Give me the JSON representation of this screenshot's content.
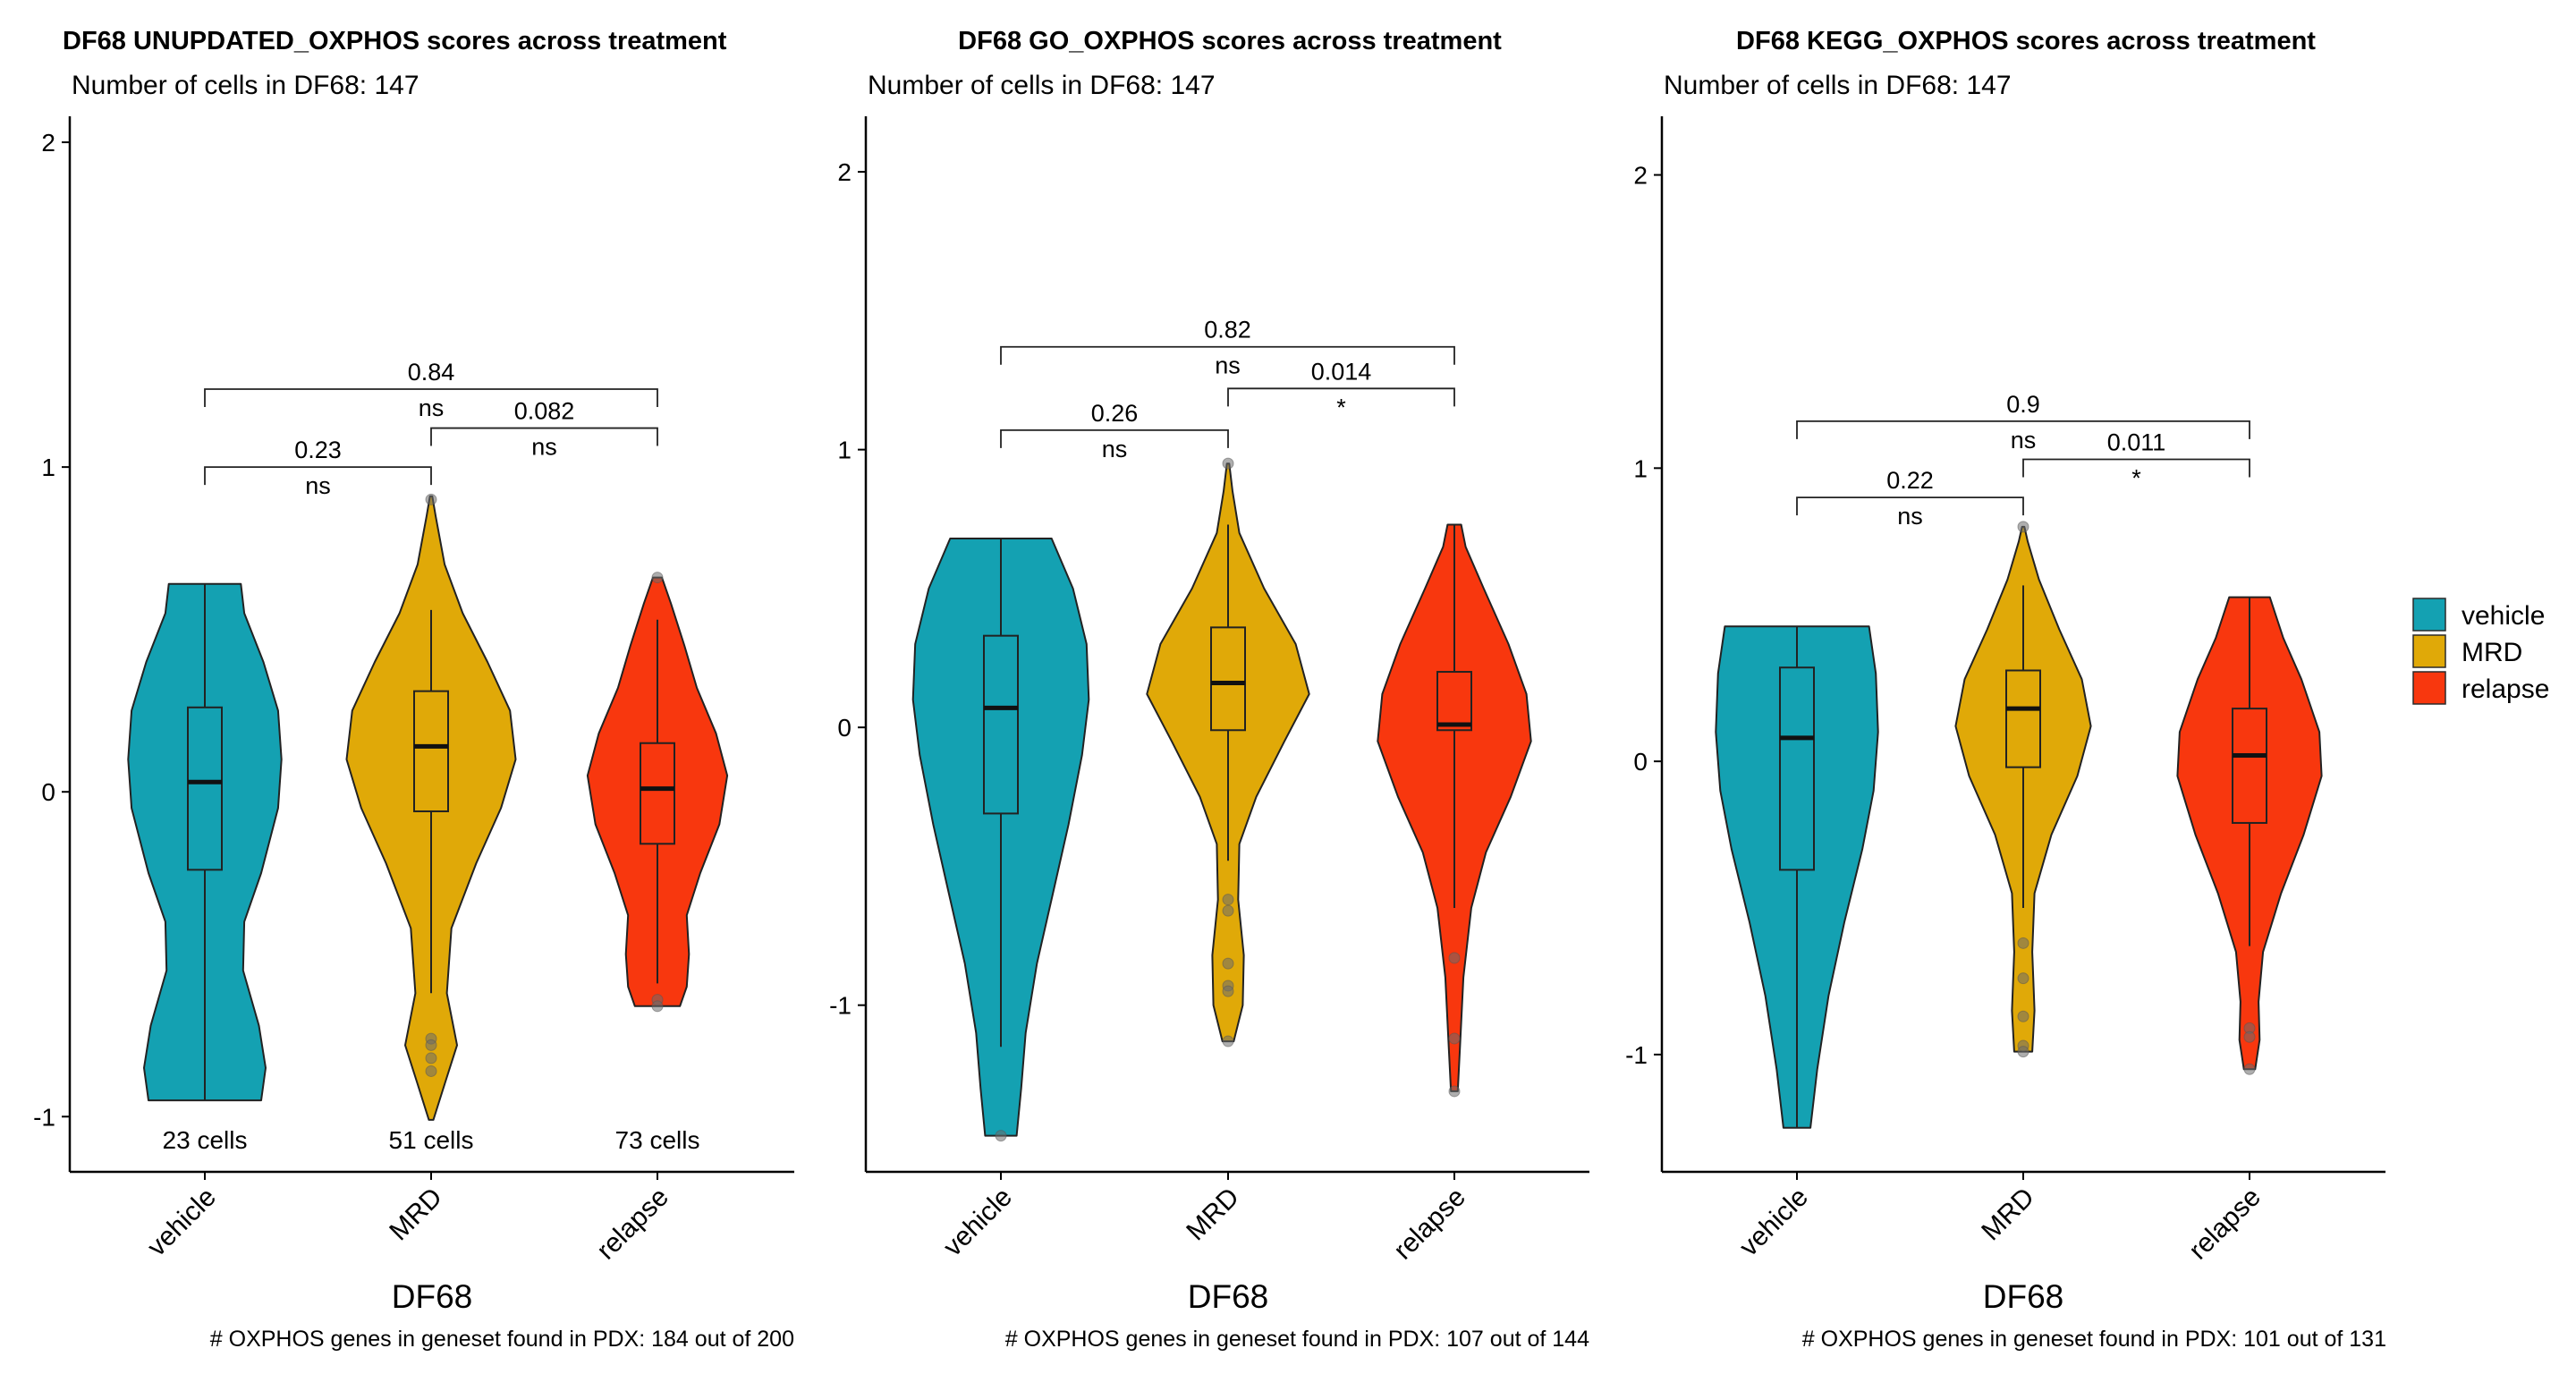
{
  "chart_data": [
    {
      "type": "violin",
      "title": "DF68 UNUPDATED_OXPHOS scores across treatment",
      "subtitle": "Number of cells in DF68: 147",
      "xlabel": "DF68",
      "caption": "# OXPHOS genes in geneset found in PDX: 184 out of 200",
      "categories": [
        "vehicle",
        "MRD",
        "relapse"
      ],
      "ylim": [
        -1.17,
        2.08
      ],
      "yticks": [
        -1,
        0,
        1,
        2
      ],
      "yticklabels": [
        "-1",
        "0",
        "1",
        "2"
      ],
      "cell_counts": [
        "23 cells",
        "51 cells",
        "73 cells"
      ],
      "series": [
        {
          "name": "vehicle",
          "color": "#14A1B2",
          "ymin": -0.95,
          "q1": -0.24,
          "median": 0.03,
          "q3": 0.26,
          "ymax": 0.64,
          "whisker_low": -0.95,
          "whisker_high": 0.64,
          "density": [
            [
              -0.95,
              0.5
            ],
            [
              -0.85,
              0.54
            ],
            [
              -0.72,
              0.48
            ],
            [
              -0.55,
              0.34
            ],
            [
              -0.4,
              0.35
            ],
            [
              -0.25,
              0.5
            ],
            [
              -0.05,
              0.65
            ],
            [
              0.1,
              0.68
            ],
            [
              0.25,
              0.65
            ],
            [
              0.4,
              0.52
            ],
            [
              0.55,
              0.35
            ],
            [
              0.64,
              0.32
            ]
          ],
          "outliers": []
        },
        {
          "name": "MRD",
          "color": "#E0A908",
          "ymin": -1.01,
          "q1": -0.06,
          "median": 0.14,
          "q3": 0.31,
          "ymax": 0.91,
          "whisker_low": -0.62,
          "whisker_high": 0.56,
          "density": [
            [
              -1.01,
              0.02
            ],
            [
              -0.9,
              0.12
            ],
            [
              -0.78,
              0.23
            ],
            [
              -0.62,
              0.14
            ],
            [
              -0.42,
              0.18
            ],
            [
              -0.22,
              0.4
            ],
            [
              -0.05,
              0.62
            ],
            [
              0.1,
              0.75
            ],
            [
              0.25,
              0.7
            ],
            [
              0.4,
              0.5
            ],
            [
              0.55,
              0.28
            ],
            [
              0.7,
              0.12
            ],
            [
              0.85,
              0.04
            ],
            [
              0.91,
              0.01
            ]
          ],
          "outliers": [
            -0.76,
            -0.78,
            -0.82,
            -0.86,
            0.9
          ]
        },
        {
          "name": "relapse",
          "color": "#F8370E",
          "ymin": -0.66,
          "q1": -0.16,
          "median": 0.01,
          "q3": 0.15,
          "ymax": 0.66,
          "whisker_low": -0.59,
          "whisker_high": 0.53,
          "density": [
            [
              -0.66,
              0.2
            ],
            [
              -0.6,
              0.26
            ],
            [
              -0.5,
              0.28
            ],
            [
              -0.38,
              0.26
            ],
            [
              -0.25,
              0.38
            ],
            [
              -0.1,
              0.55
            ],
            [
              0.05,
              0.62
            ],
            [
              0.18,
              0.52
            ],
            [
              0.32,
              0.35
            ],
            [
              0.45,
              0.24
            ],
            [
              0.58,
              0.12
            ],
            [
              0.66,
              0.04
            ]
          ],
          "outliers": [
            -0.64,
            -0.66,
            0.66
          ]
        }
      ],
      "comparisons": [
        {
          "groups": [
            "vehicle",
            "MRD"
          ],
          "p": "0.23",
          "signif": "ns",
          "y": 1.0
        },
        {
          "groups": [
            "MRD",
            "relapse"
          ],
          "p": "0.082",
          "signif": "ns",
          "y": 1.12
        },
        {
          "groups": [
            "vehicle",
            "relapse"
          ],
          "p": "0.84",
          "signif": "ns",
          "y": 1.24
        }
      ]
    },
    {
      "type": "violin",
      "title": "DF68 GO_OXPHOS scores across treatment",
      "subtitle": "Number of cells in DF68: 147",
      "xlabel": "DF68",
      "caption": "# OXPHOS genes in geneset found in PDX: 107 out of 144",
      "categories": [
        "vehicle",
        "MRD",
        "relapse"
      ],
      "ylim": [
        -1.6,
        2.2
      ],
      "yticks": [
        -1,
        0,
        1,
        2
      ],
      "yticklabels": [
        "-1",
        "0",
        "1",
        "2"
      ],
      "cell_counts": [],
      "series": [
        {
          "name": "vehicle",
          "color": "#14A1B2",
          "ymin": -1.47,
          "q1": -0.31,
          "median": 0.07,
          "q3": 0.33,
          "ymax": 0.68,
          "whisker_low": -1.15,
          "whisker_high": 0.68,
          "density": [
            [
              -1.47,
              0.14
            ],
            [
              -1.3,
              0.18
            ],
            [
              -1.1,
              0.22
            ],
            [
              -0.85,
              0.32
            ],
            [
              -0.6,
              0.46
            ],
            [
              -0.35,
              0.6
            ],
            [
              -0.1,
              0.72
            ],
            [
              0.1,
              0.78
            ],
            [
              0.3,
              0.76
            ],
            [
              0.5,
              0.64
            ],
            [
              0.68,
              0.45
            ]
          ],
          "outliers": [
            -1.47
          ]
        },
        {
          "name": "MRD",
          "color": "#E0A908",
          "ymin": -1.13,
          "q1": -0.01,
          "median": 0.16,
          "q3": 0.36,
          "ymax": 0.95,
          "whisker_low": -0.48,
          "whisker_high": 0.73,
          "density": [
            [
              -1.13,
              0.05
            ],
            [
              -1.0,
              0.13
            ],
            [
              -0.82,
              0.14
            ],
            [
              -0.62,
              0.09
            ],
            [
              -0.42,
              0.1
            ],
            [
              -0.25,
              0.25
            ],
            [
              -0.05,
              0.5
            ],
            [
              0.12,
              0.72
            ],
            [
              0.3,
              0.6
            ],
            [
              0.5,
              0.32
            ],
            [
              0.7,
              0.1
            ],
            [
              0.85,
              0.04
            ],
            [
              0.95,
              0.01
            ]
          ],
          "outliers": [
            -0.62,
            -0.66,
            -0.85,
            -0.93,
            -0.95,
            -1.13,
            0.95
          ]
        },
        {
          "name": "relapse",
          "color": "#F8370E",
          "ymin": -1.31,
          "q1": -0.01,
          "median": 0.01,
          "q3": 0.2,
          "ymax": 0.73,
          "whisker_low": -0.65,
          "whisker_high": 0.73,
          "density": [
            [
              -1.31,
              0.03
            ],
            [
              -1.15,
              0.05
            ],
            [
              -0.9,
              0.08
            ],
            [
              -0.65,
              0.15
            ],
            [
              -0.45,
              0.28
            ],
            [
              -0.25,
              0.5
            ],
            [
              -0.05,
              0.68
            ],
            [
              0.12,
              0.64
            ],
            [
              0.3,
              0.48
            ],
            [
              0.5,
              0.26
            ],
            [
              0.65,
              0.1
            ],
            [
              0.73,
              0.06
            ]
          ],
          "outliers": [
            -0.83,
            -1.12,
            -1.31
          ]
        }
      ],
      "comparisons": [
        {
          "groups": [
            "vehicle",
            "MRD"
          ],
          "p": "0.26",
          "signif": "ns",
          "y": 1.07
        },
        {
          "groups": [
            "MRD",
            "relapse"
          ],
          "p": "0.014",
          "signif": "*",
          "y": 1.22
        },
        {
          "groups": [
            "vehicle",
            "relapse"
          ],
          "p": "0.82",
          "signif": "ns",
          "y": 1.37
        }
      ]
    },
    {
      "type": "violin",
      "title": "DF68 KEGG_OXPHOS scores across treatment",
      "subtitle": "Number of cells in DF68: 147",
      "xlabel": "DF68",
      "caption": "# OXPHOS genes in geneset found in PDX: 101 out of 131",
      "categories": [
        "vehicle",
        "MRD",
        "relapse"
      ],
      "ylim": [
        -1.4,
        2.2
      ],
      "yticks": [
        -1,
        0,
        1,
        2
      ],
      "yticklabels": [
        "-1",
        "0",
        "1",
        "2"
      ],
      "cell_counts": [],
      "series": [
        {
          "name": "vehicle",
          "color": "#14A1B2",
          "ymin": -1.25,
          "q1": -0.37,
          "median": 0.08,
          "q3": 0.32,
          "ymax": 0.46,
          "whisker_low": -1.25,
          "whisker_high": 0.46,
          "density": [
            [
              -1.25,
              0.12
            ],
            [
              -1.05,
              0.18
            ],
            [
              -0.8,
              0.28
            ],
            [
              -0.55,
              0.42
            ],
            [
              -0.3,
              0.58
            ],
            [
              -0.1,
              0.68
            ],
            [
              0.1,
              0.72
            ],
            [
              0.3,
              0.7
            ],
            [
              0.46,
              0.64
            ]
          ],
          "outliers": []
        },
        {
          "name": "MRD",
          "color": "#E0A908",
          "ymin": -0.99,
          "q1": -0.02,
          "median": 0.18,
          "q3": 0.31,
          "ymax": 0.8,
          "whisker_low": -0.5,
          "whisker_high": 0.6,
          "density": [
            [
              -0.99,
              0.08
            ],
            [
              -0.85,
              0.1
            ],
            [
              -0.65,
              0.08
            ],
            [
              -0.45,
              0.1
            ],
            [
              -0.25,
              0.25
            ],
            [
              -0.05,
              0.48
            ],
            [
              0.12,
              0.6
            ],
            [
              0.28,
              0.52
            ],
            [
              0.45,
              0.32
            ],
            [
              0.62,
              0.14
            ],
            [
              0.75,
              0.04
            ],
            [
              0.8,
              0.01
            ]
          ],
          "outliers": [
            -0.62,
            -0.74,
            -0.87,
            -0.97,
            -0.99,
            0.8
          ]
        },
        {
          "name": "relapse",
          "color": "#F8370E",
          "ymin": -1.05,
          "q1": -0.21,
          "median": 0.02,
          "q3": 0.18,
          "ymax": 0.56,
          "whisker_low": -0.63,
          "whisker_high": 0.56,
          "density": [
            [
              -1.05,
              0.05
            ],
            [
              -0.95,
              0.09
            ],
            [
              -0.82,
              0.08
            ],
            [
              -0.65,
              0.12
            ],
            [
              -0.45,
              0.28
            ],
            [
              -0.25,
              0.48
            ],
            [
              -0.05,
              0.64
            ],
            [
              0.1,
              0.62
            ],
            [
              0.28,
              0.46
            ],
            [
              0.42,
              0.3
            ],
            [
              0.56,
              0.18
            ]
          ],
          "outliers": [
            -0.91,
            -0.94,
            -1.05
          ]
        }
      ],
      "comparisons": [
        {
          "groups": [
            "vehicle",
            "MRD"
          ],
          "p": "0.22",
          "signif": "ns",
          "y": 0.9
        },
        {
          "groups": [
            "MRD",
            "relapse"
          ],
          "p": "0.011",
          "signif": "*",
          "y": 1.03
        },
        {
          "groups": [
            "vehicle",
            "relapse"
          ],
          "p": "0.9",
          "signif": "ns",
          "y": 1.16
        }
      ]
    }
  ],
  "legend": {
    "position": "right",
    "items": [
      {
        "label": "vehicle",
        "color": "#14A1B2"
      },
      {
        "label": "MRD",
        "color": "#E0A908"
      },
      {
        "label": "relapse",
        "color": "#F8370E"
      }
    ]
  }
}
